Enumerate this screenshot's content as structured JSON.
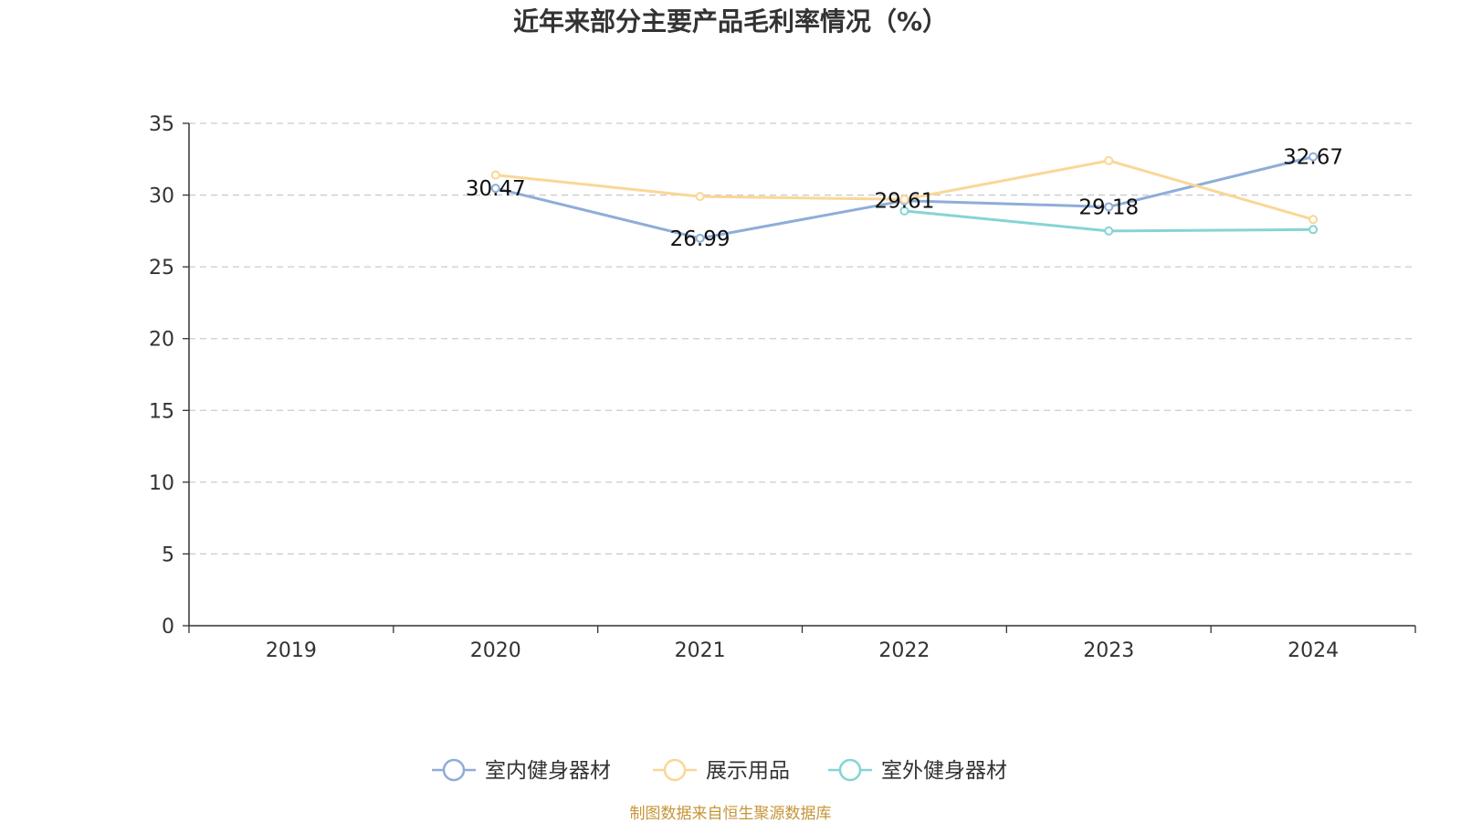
{
  "chart_data": {
    "type": "line",
    "title": "近年来部分主要产品毛利率情况（%）",
    "xlabel": "",
    "ylabel": "",
    "categories": [
      "2019",
      "2020",
      "2021",
      "2022",
      "2023",
      "2024"
    ],
    "ylim": [
      0,
      35
    ],
    "yticks": [
      0,
      5,
      10,
      15,
      20,
      25,
      30,
      35
    ],
    "grid": true,
    "legend_position": "bottom",
    "series": [
      {
        "name": "室内健身器材",
        "color": "#8eadd8",
        "values": [
          null,
          30.47,
          26.99,
          29.61,
          29.18,
          32.67
        ],
        "data_labels": [
          "",
          "30.47",
          "26.99",
          "29.61",
          "29.18",
          "32.67"
        ]
      },
      {
        "name": "展示用品",
        "color": "#fad797",
        "values": [
          null,
          31.4,
          29.9,
          29.7,
          32.4,
          28.3
        ],
        "data_labels": [
          "",
          "",
          "",
          "",
          "",
          ""
        ]
      },
      {
        "name": "室外健身器材",
        "color": "#86d4d4",
        "values": [
          null,
          null,
          null,
          28.9,
          27.5,
          27.6
        ],
        "data_labels": [
          "",
          "",
          "",
          "",
          "",
          ""
        ]
      }
    ]
  },
  "source_note": "制图数据来自恒生聚源数据库"
}
